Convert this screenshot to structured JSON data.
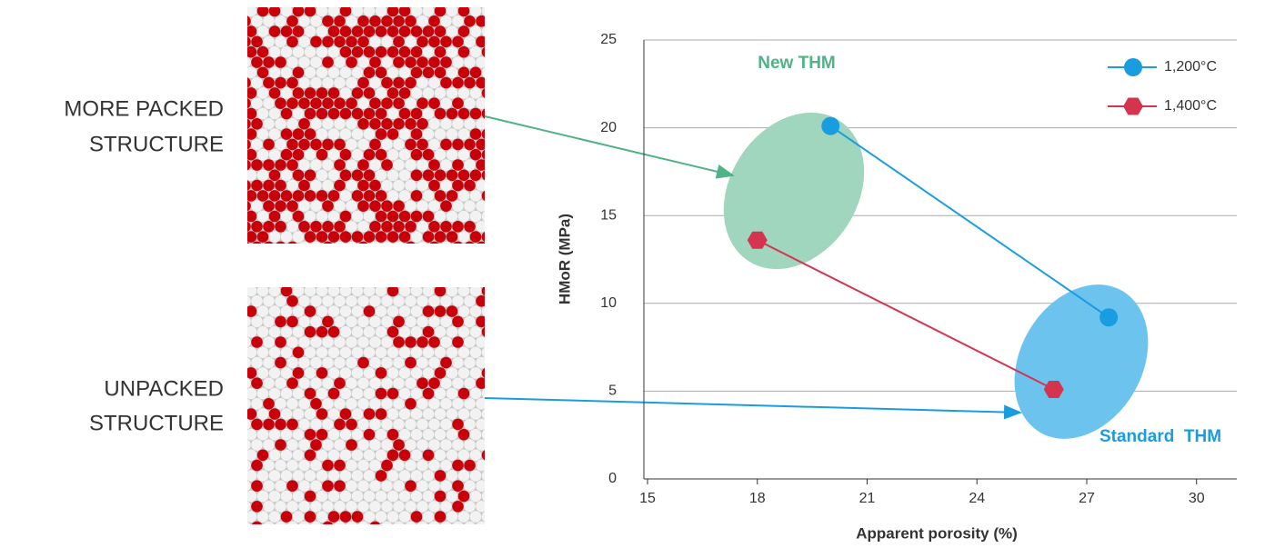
{
  "chart_data": {
    "type": "line",
    "x_label": "Apparent porosity (%)",
    "y_label": "HMoR (MPa)",
    "xlim": [
      14.9,
      31.1
    ],
    "ylim": [
      0,
      25
    ],
    "xticks": [
      15,
      18,
      21,
      24,
      27,
      30
    ],
    "yticks": [
      0,
      5,
      10,
      15,
      20,
      25
    ],
    "grid": true,
    "legend": "upper right",
    "series": [
      {
        "name": "1,200°C",
        "color": "#1a9de0",
        "marker": "circle",
        "x": [
          20.0,
          27.6
        ],
        "values": [
          20.1,
          9.2
        ]
      },
      {
        "name": "1,400°C",
        "color": "#d5344f",
        "marker": "hexagon",
        "x": [
          18.0,
          26.1
        ],
        "values": [
          13.6,
          5.1
        ]
      }
    ],
    "annotations": [
      "New THM",
      "Standard  THM"
    ],
    "structure_labels": [
      [
        "MORE PACKED",
        "STRUCTURE"
      ],
      [
        "UNPACKED",
        "STRUCTURE"
      ]
    ]
  }
}
